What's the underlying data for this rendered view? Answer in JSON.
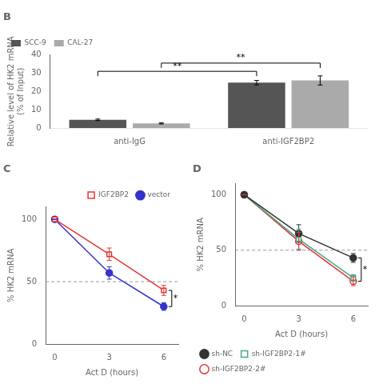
{
  "chart_data": [
    {
      "type": "bar",
      "title": "B",
      "categories": [
        "anti-IgG",
        "anti-IGF2BP2"
      ],
      "series": [
        {
          "name": "SCC-9",
          "color": "#555555",
          "values": [
            4.5,
            24.8
          ],
          "errors": [
            0.4,
            1.2
          ]
        },
        {
          "name": "CAL-27",
          "color": "#aaaaaa",
          "values": [
            2.5,
            26.0
          ],
          "errors": [
            0.3,
            2.5
          ]
        }
      ],
      "ylabel": "Relative level of HK2 mRNA\n(% of Input)",
      "ylim": [
        0,
        40
      ],
      "yticks": [
        0,
        10,
        20,
        30,
        40
      ],
      "grid": false,
      "legend": "upper left",
      "annotations": [
        {
          "text": "**",
          "series": "SCC-9",
          "y": 31
        },
        {
          "text": "**",
          "series": "CAL-27",
          "y": 35.5
        }
      ]
    },
    {
      "type": "line",
      "title": "C",
      "x": [
        0,
        3,
        6
      ],
      "series": [
        {
          "name": "IGF2BP2",
          "color": "#e63333",
          "marker": "open_square",
          "values": [
            100,
            72,
            43
          ],
          "errors": [
            0,
            5,
            4
          ]
        },
        {
          "name": "vector",
          "color": "#3333cc",
          "marker": "circle",
          "values": [
            100,
            57,
            30
          ],
          "errors": [
            0,
            5,
            3
          ]
        }
      ],
      "xlabel": "Act D (hours)",
      "ylabel": "% HK2 mRNA",
      "xlim": [
        -0.5,
        6.8
      ],
      "xticks": [
        0,
        3,
        6
      ],
      "ylim": [
        0,
        110
      ],
      "yticks": [
        0,
        50,
        100
      ],
      "hline": 50,
      "grid": false,
      "legend": "upper right",
      "annotations": [
        {
          "text": "*",
          "x": 6,
          "series": [
            "IGF2BP2",
            "vector"
          ]
        }
      ]
    },
    {
      "type": "line",
      "title": "D",
      "x": [
        0,
        3,
        6
      ],
      "series": [
        {
          "name": "sh-NC",
          "color": "#333333",
          "marker": "circle",
          "values": [
            100,
            65,
            43
          ],
          "errors": [
            0,
            8,
            4
          ]
        },
        {
          "name": "sh-IGF2BP2-1#",
          "color": "#44aa88",
          "marker": "open_square",
          "values": [
            100,
            60,
            25
          ],
          "errors": [
            0,
            9,
            3
          ]
        },
        {
          "name": "sh-IGF2BP2-2#",
          "color": "#e63333",
          "marker": "open_circle",
          "values": [
            100,
            58,
            22
          ],
          "errors": [
            0,
            8,
            4
          ]
        }
      ],
      "xlabel": "Act D (hours)",
      "ylabel": "% HK2 mRNA",
      "xlim": [
        -0.5,
        6.8
      ],
      "xticks": [
        0,
        3,
        6
      ],
      "ylim": [
        0,
        110
      ],
      "yticks": [
        0,
        50,
        100
      ],
      "hline": 50,
      "grid": false,
      "legend": "lower left",
      "annotations": [
        {
          "text": "*",
          "x": 6,
          "series": [
            "sh-NC",
            "sh-IGF2BP2-2#"
          ]
        }
      ]
    }
  ]
}
